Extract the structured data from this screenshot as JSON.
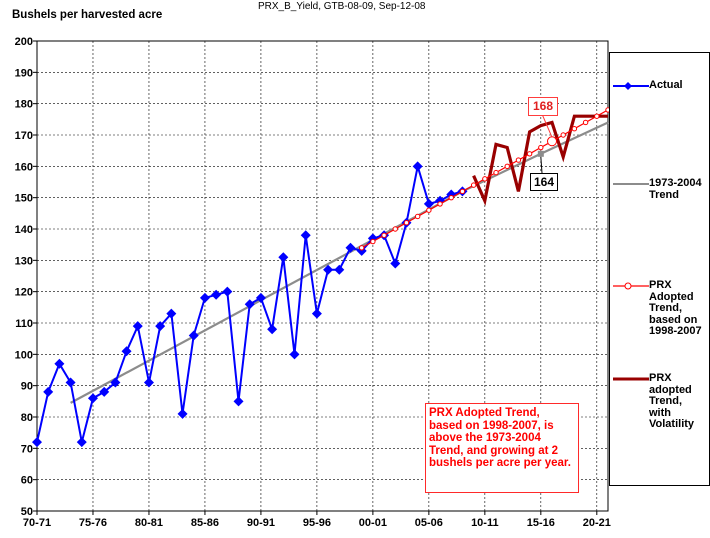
{
  "header": {
    "title": "PRX_B_Yield, GTB-08-09, Sep-12-08",
    "ylabel": "Bushels per harvested acre"
  },
  "chart_data": {
    "type": "line",
    "ylim": [
      50,
      200
    ],
    "yticks": [
      50,
      60,
      70,
      80,
      90,
      100,
      110,
      120,
      130,
      140,
      150,
      160,
      170,
      180,
      190,
      200
    ],
    "xlim": [
      1970,
      2021
    ],
    "x_tick_labels": [
      "70-71",
      "75-76",
      "80-81",
      "85-86",
      "90-91",
      "95-96",
      "00-01",
      "05-06",
      "10-11",
      "15-16",
      "20-21"
    ],
    "x_tick_years": [
      1970,
      1975,
      1980,
      1985,
      1990,
      1995,
      2000,
      2005,
      2010,
      2015,
      2020
    ],
    "grid": true,
    "legend_position": "right",
    "series": [
      {
        "name": "Actual",
        "color": "#0000ff",
        "marker": "diamond",
        "x": [
          1970,
          1971,
          1972,
          1973,
          1974,
          1975,
          1976,
          1977,
          1978,
          1979,
          1980,
          1981,
          1982,
          1983,
          1984,
          1985,
          1986,
          1987,
          1988,
          1989,
          1990,
          1991,
          1992,
          1993,
          1994,
          1995,
          1996,
          1997,
          1998,
          1999,
          2000,
          2001,
          2002,
          2003,
          2004,
          2005,
          2006,
          2007,
          2008
        ],
        "values": [
          72,
          88,
          97,
          91,
          72,
          86,
          88,
          91,
          101,
          109,
          91,
          109,
          113,
          81,
          106,
          118,
          119,
          120,
          85,
          116,
          118,
          108,
          131,
          100,
          138,
          113,
          127,
          127,
          134,
          133,
          137,
          138,
          129,
          142,
          160,
          148,
          149,
          151,
          152
        ]
      },
      {
        "name": "1973-2004 Trend",
        "color": "#8c8c8c",
        "x": [
          1973,
          2008,
          2015,
          2021
        ],
        "values": [
          84.5,
          152,
          164,
          174
        ]
      },
      {
        "name": "PRX Adopted Trend, based on 1998-2007",
        "color": "#ff0000",
        "marker": "circle",
        "x": [
          1999,
          2000,
          2001,
          2002,
          2003,
          2004,
          2005,
          2006,
          2007,
          2008,
          2009,
          2010,
          2011,
          2012,
          2013,
          2014,
          2015,
          2016,
          2017,
          2018,
          2019,
          2020,
          2021
        ],
        "values": [
          134,
          136,
          138,
          140,
          142,
          144,
          146,
          148,
          150,
          152,
          154,
          156,
          158,
          160,
          162,
          164,
          166,
          168,
          170,
          172,
          174,
          176,
          178
        ]
      },
      {
        "name": "PRX adopted Trend, with Volatility",
        "color": "#990000",
        "x": [
          2009,
          2010,
          2011,
          2012,
          2013,
          2014,
          2015,
          2016,
          2017,
          2018,
          2019,
          2020,
          2021
        ],
        "values": [
          157,
          149,
          167,
          166,
          152,
          171,
          173,
          174,
          163,
          176,
          176,
          176,
          176
        ]
      }
    ],
    "callouts": [
      {
        "label": "168",
        "year": 2016,
        "value": 168
      },
      {
        "label": "164",
        "year": 2015,
        "value": 164
      }
    ],
    "annotation": "PRX Adopted Trend, based on 1998-2007, is above the 1973-2004 Trend, and growing at 2 bushels per acre per year."
  },
  "legend": {
    "actual": "Actual",
    "trend_1973_2004": "1973-2004\nTrend",
    "prx_adopted": "PRX\nAdopted\nTrend,\nbased on\n1998-2007",
    "prx_volatility": "PRX\nadopted\nTrend,\nwith\nVolatility"
  }
}
